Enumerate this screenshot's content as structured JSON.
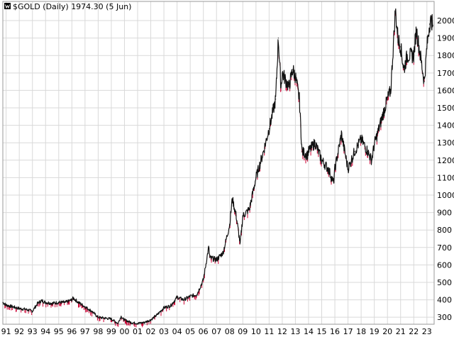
{
  "chart_data": {
    "type": "line",
    "title": "$GOLD (Daily) 1974.30 (5 Jun)",
    "logo_icon": "stockcharts-logo-icon",
    "xlabel": "",
    "ylabel": "",
    "grid": true,
    "legend": "none",
    "x_tick_labels": [
      "91",
      "92",
      "93",
      "94",
      "95",
      "96",
      "97",
      "98",
      "99",
      "00",
      "01",
      "02",
      "03",
      "04",
      "05",
      "06",
      "07",
      "08",
      "09",
      "10",
      "11",
      "12",
      "13",
      "14",
      "15",
      "16",
      "17",
      "18",
      "19",
      "20",
      "21",
      "22",
      "23"
    ],
    "x_range": [
      1990.75,
      2023.55
    ],
    "y_ticks": [
      300,
      400,
      500,
      600,
      700,
      800,
      900,
      1000,
      1100,
      1200,
      1300,
      1400,
      1500,
      1600,
      1700,
      1800,
      1900,
      2000
    ],
    "y_range": [
      260,
      2110
    ],
    "colors": {
      "line": "#111111",
      "down_bars": "#cc0033",
      "grid": "#d9d9d9",
      "frame": "#999999"
    },
    "series": [
      {
        "name": "",
        "x": [
          1990.75,
          1991.0,
          1991.5,
          1992.0,
          1992.5,
          1993.0,
          1993.4,
          1993.7,
          1994.0,
          1994.5,
          1995.0,
          1995.5,
          1996.0,
          1996.1,
          1996.5,
          1997.0,
          1997.5,
          1998.0,
          1998.5,
          1999.0,
          1999.5,
          1999.75,
          1999.9,
          2000.0,
          2000.5,
          2001.0,
          2001.5,
          2002.0,
          2002.5,
          2003.0,
          2003.5,
          2004.0,
          2004.5,
          2005.0,
          2005.5,
          2006.0,
          2006.4,
          2006.5,
          2007.0,
          2007.5,
          2008.0,
          2008.2,
          2008.5,
          2008.8,
          2009.0,
          2009.5,
          2010.0,
          2010.5,
          2011.0,
          2011.5,
          2011.7,
          2011.9,
          2012.0,
          2012.5,
          2012.8,
          2013.0,
          2013.3,
          2013.5,
          2013.9,
          2014.0,
          2014.5,
          2015.0,
          2015.5,
          2015.9,
          2016.0,
          2016.5,
          2017.0,
          2017.5,
          2018.0,
          2018.5,
          2018.8,
          2019.0,
          2019.5,
          2019.8,
          2020.0,
          2020.25,
          2020.6,
          2020.8,
          2021.0,
          2021.25,
          2021.5,
          2022.0,
          2022.2,
          2022.5,
          2022.8,
          2023.0,
          2023.2,
          2023.35,
          2023.45
        ],
        "y": [
          385,
          370,
          360,
          350,
          345,
          335,
          380,
          395,
          385,
          380,
          385,
          385,
          400,
          410,
          385,
          360,
          335,
          300,
          295,
          290,
          265,
          305,
          290,
          285,
          270,
          265,
          270,
          285,
          315,
          355,
          365,
          415,
          400,
          420,
          430,
          515,
          700,
          640,
          630,
          670,
          830,
          980,
          880,
          720,
          880,
          920,
          1100,
          1230,
          1380,
          1550,
          1900,
          1620,
          1700,
          1620,
          1720,
          1680,
          1550,
          1250,
          1230,
          1250,
          1300,
          1200,
          1150,
          1070,
          1150,
          1350,
          1150,
          1250,
          1320,
          1250,
          1200,
          1290,
          1420,
          1500,
          1550,
          1600,
          2060,
          1900,
          1850,
          1720,
          1800,
          1800,
          1950,
          1800,
          1650,
          1850,
          1980,
          2000,
          1974
        ]
      }
    ]
  }
}
